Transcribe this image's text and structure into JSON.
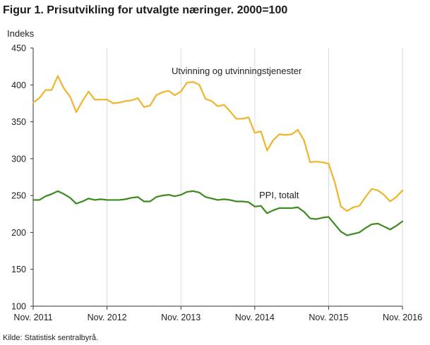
{
  "title": "Figur 1. Prisutvikling for utvalgte næringer. 2000=100",
  "source": "Kilde: Statistisk sentralbyrå.",
  "chart_data": {
    "type": "line",
    "ylabel": "Indeks",
    "ylim": [
      100,
      450
    ],
    "yticks": [
      100,
      150,
      200,
      250,
      300,
      350,
      400,
      450
    ],
    "x_range": [
      "2011-11",
      "2016-11"
    ],
    "xticks": [
      "Nov. 2011",
      "Nov. 2012",
      "Nov. 2013",
      "Nov. 2014",
      "Nov. 2015",
      "Nov. 2016"
    ],
    "grid": "vertical at each year tick",
    "series": [
      {
        "name": "Utvinning og utvinningstjenester",
        "color": "#f0b42b",
        "x": [
          "2011-11",
          "2011-12",
          "2012-01",
          "2012-02",
          "2012-03",
          "2012-04",
          "2012-05",
          "2012-06",
          "2012-07",
          "2012-08",
          "2012-09",
          "2012-10",
          "2012-11",
          "2012-12",
          "2013-01",
          "2013-02",
          "2013-03",
          "2013-04",
          "2013-05",
          "2013-06",
          "2013-07",
          "2013-08",
          "2013-09",
          "2013-10",
          "2013-11",
          "2013-12",
          "2014-01",
          "2014-02",
          "2014-03",
          "2014-04",
          "2014-05",
          "2014-06",
          "2014-07",
          "2014-08",
          "2014-09",
          "2014-10",
          "2014-11",
          "2014-12",
          "2015-01",
          "2015-02",
          "2015-03",
          "2015-04",
          "2015-05",
          "2015-06",
          "2015-07",
          "2015-08",
          "2015-09",
          "2015-10",
          "2015-11",
          "2015-12",
          "2016-01",
          "2016-02",
          "2016-03",
          "2016-04",
          "2016-05",
          "2016-06",
          "2016-07",
          "2016-08",
          "2016-09",
          "2016-10",
          "2016-11"
        ],
        "values": [
          376,
          382,
          393,
          393,
          412,
          395,
          384,
          363,
          378,
          391,
          380,
          380,
          380,
          375,
          376,
          378,
          379,
          382,
          370,
          372,
          386,
          390,
          392,
          386,
          391,
          403,
          404,
          400,
          381,
          378,
          371,
          373,
          364,
          354,
          354,
          356,
          335,
          337,
          311,
          325,
          333,
          332,
          333,
          339,
          325,
          295,
          296,
          295,
          293,
          268,
          235,
          229,
          234,
          236,
          248,
          259,
          257,
          251,
          242,
          248,
          257
        ]
      },
      {
        "name": "PPI, totalt",
        "color": "#3b8a1e",
        "x": [
          "2011-11",
          "2011-12",
          "2012-01",
          "2012-02",
          "2012-03",
          "2012-04",
          "2012-05",
          "2012-06",
          "2012-07",
          "2012-08",
          "2012-09",
          "2012-10",
          "2012-11",
          "2012-12",
          "2013-01",
          "2013-02",
          "2013-03",
          "2013-04",
          "2013-05",
          "2013-06",
          "2013-07",
          "2013-08",
          "2013-09",
          "2013-10",
          "2013-11",
          "2013-12",
          "2014-01",
          "2014-02",
          "2014-03",
          "2014-04",
          "2014-05",
          "2014-06",
          "2014-07",
          "2014-08",
          "2014-09",
          "2014-10",
          "2014-11",
          "2014-12",
          "2015-01",
          "2015-02",
          "2015-03",
          "2015-04",
          "2015-05",
          "2015-06",
          "2015-07",
          "2015-08",
          "2015-09",
          "2015-10",
          "2015-11",
          "2015-12",
          "2016-01",
          "2016-02",
          "2016-03",
          "2016-04",
          "2016-05",
          "2016-06",
          "2016-07",
          "2016-08",
          "2016-09",
          "2016-10",
          "2016-11"
        ],
        "values": [
          244,
          244,
          249,
          252,
          256,
          252,
          247,
          239,
          242,
          246,
          244,
          245,
          244,
          244,
          244,
          245,
          247,
          248,
          242,
          242,
          248,
          250,
          251,
          249,
          251,
          255,
          256,
          254,
          248,
          246,
          244,
          245,
          244,
          242,
          242,
          241,
          235,
          236,
          226,
          230,
          233,
          233,
          233,
          234,
          228,
          219,
          218,
          220,
          221,
          211,
          201,
          196,
          198,
          200,
          206,
          211,
          212,
          208,
          204,
          209,
          215
        ]
      }
    ],
    "annotations": [
      {
        "text": "Utvinning og utvinningstjenester",
        "series": 0
      },
      {
        "text": "PPI, totalt",
        "series": 1
      }
    ]
  }
}
